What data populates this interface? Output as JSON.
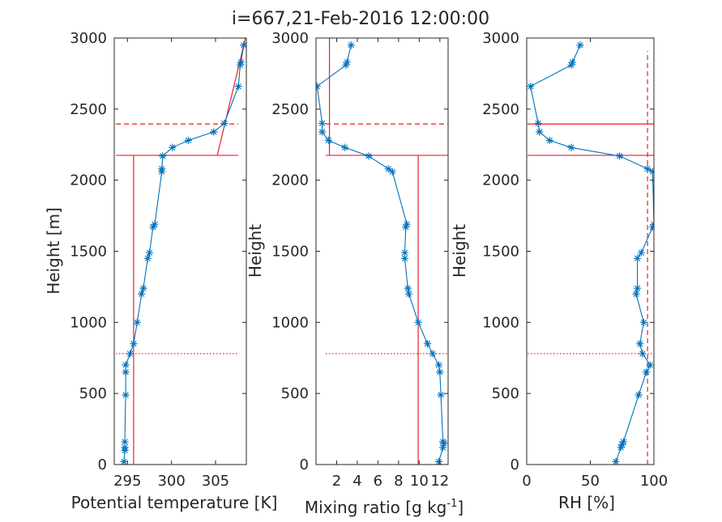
{
  "figure": {
    "title": "i=667,21-Feb-2016 12:00:00"
  },
  "chart_data": [
    {
      "type": "line",
      "xlabel": "Potential temperature [K]",
      "ylabel": "Height [m]",
      "xlim": [
        293.5,
        308.5
      ],
      "ylim": [
        0,
        3000
      ],
      "xticks": [
        295,
        300,
        305
      ],
      "xtick_labels": [
        "295",
        "300",
        "305"
      ],
      "yticks": [
        0,
        500,
        1000,
        1500,
        2000,
        2500,
        3000
      ],
      "ytick_labels": [
        "0",
        "500",
        "1000",
        "1500",
        "2000",
        "2500",
        "3000"
      ],
      "grid": false,
      "series": [
        {
          "marker": "asterisk",
          "color": "#0072bd",
          "x": [
            294.6,
            294.7,
            294.7,
            294.7,
            294.8,
            294.8,
            294.8,
            295.3,
            295.7,
            296.1,
            296.6,
            296.8,
            297.3,
            297.5,
            297.9,
            298.1,
            298.9,
            298.9,
            299.0,
            300.1,
            301.9,
            304.8,
            306.0,
            307.6,
            307.8,
            307.9,
            308.2
          ],
          "y": [
            20,
            100,
            120,
            160,
            490,
            650,
            700,
            780,
            850,
            1000,
            1200,
            1240,
            1450,
            1490,
            1670,
            1690,
            2060,
            2080,
            2170,
            2230,
            2280,
            2340,
            2400,
            2660,
            2810,
            2830,
            2950
          ]
        }
      ],
      "reference_lines": {
        "mixed_layer_value": 295.7,
        "inversion_base_height": 2175,
        "inversion_top_height": 2395,
        "lower_dotted_height": 780,
        "lapse_line": {
          "x": [
            305.2,
            308.4
          ],
          "y": [
            2175,
            3000
          ]
        }
      }
    },
    {
      "type": "line",
      "xlabel": "Mixing ratio [g kg",
      "xlabel_sup": "-1",
      "xlabel_end": "]",
      "ylabel": "Height",
      "xlim": [
        0,
        12.8
      ],
      "ylim": [
        0,
        3000
      ],
      "xticks": [
        2,
        4,
        6,
        8,
        10,
        12
      ],
      "xtick_labels": [
        "2",
        "4",
        "6",
        "8",
        "10",
        "12"
      ],
      "yticks": [
        0,
        500,
        1000,
        1500,
        2000,
        2500,
        3000
      ],
      "ytick_labels": [
        "0",
        "500",
        "1000",
        "1500",
        "2000",
        "2500",
        "3000"
      ],
      "grid": false,
      "series": [
        {
          "marker": "asterisk",
          "color": "#0072bd",
          "x": [
            11.9,
            12.3,
            12.4,
            12.3,
            12.1,
            12.0,
            11.9,
            11.3,
            10.8,
            9.9,
            9.0,
            8.9,
            8.6,
            8.6,
            8.7,
            8.8,
            7.4,
            7.0,
            5.1,
            2.8,
            1.2,
            0.6,
            0.6,
            0.1,
            2.9,
            3.0,
            3.4
          ],
          "y": [
            20,
            120,
            150,
            160,
            490,
            650,
            700,
            780,
            850,
            1000,
            1200,
            1240,
            1450,
            1490,
            1670,
            1690,
            2060,
            2080,
            2170,
            2230,
            2280,
            2340,
            2400,
            2660,
            2810,
            2830,
            2950
          ]
        }
      ],
      "reference_lines": {
        "mixed_layer_value": 9.9,
        "free_tropo_value": 1.3,
        "inversion_base_height": 2175,
        "inversion_top_height": 2395,
        "lower_dotted_height": 780
      }
    },
    {
      "type": "line",
      "xlabel": "RH [%]",
      "ylabel": "Height",
      "xlim": [
        0,
        100
      ],
      "ylim": [
        0,
        3000
      ],
      "xticks": [
        0,
        50,
        100
      ],
      "xtick_labels": [
        "0",
        "50",
        "100"
      ],
      "yticks": [
        0,
        500,
        1000,
        1500,
        2000,
        2500,
        3000
      ],
      "ytick_labels": [
        "0",
        "500",
        "1000",
        "1500",
        "2000",
        "2500",
        "3000"
      ],
      "grid": false,
      "series": [
        {
          "marker": "asterisk",
          "color": "#0072bd",
          "x": [
            70,
            74,
            75,
            76,
            88,
            94,
            97,
            91,
            89,
            92,
            86,
            87,
            87,
            90,
            99,
            100,
            99,
            95,
            73,
            35,
            18,
            10,
            9,
            3,
            35,
            36,
            42
          ],
          "y": [
            20,
            120,
            140,
            160,
            490,
            650,
            700,
            780,
            850,
            1000,
            1200,
            1240,
            1450,
            1490,
            1670,
            1690,
            2060,
            2080,
            2170,
            2230,
            2280,
            2340,
            2400,
            2660,
            2810,
            2830,
            2950
          ]
        }
      ],
      "reference_lines": {
        "dashed_vertical_value": 95,
        "inversion_base_height": 2175,
        "inversion_top_height": 2395,
        "lower_dotted_height": 780
      }
    }
  ],
  "colors": {
    "series": "#0072bd",
    "reference": "#e8202a",
    "axes": "#262626"
  }
}
